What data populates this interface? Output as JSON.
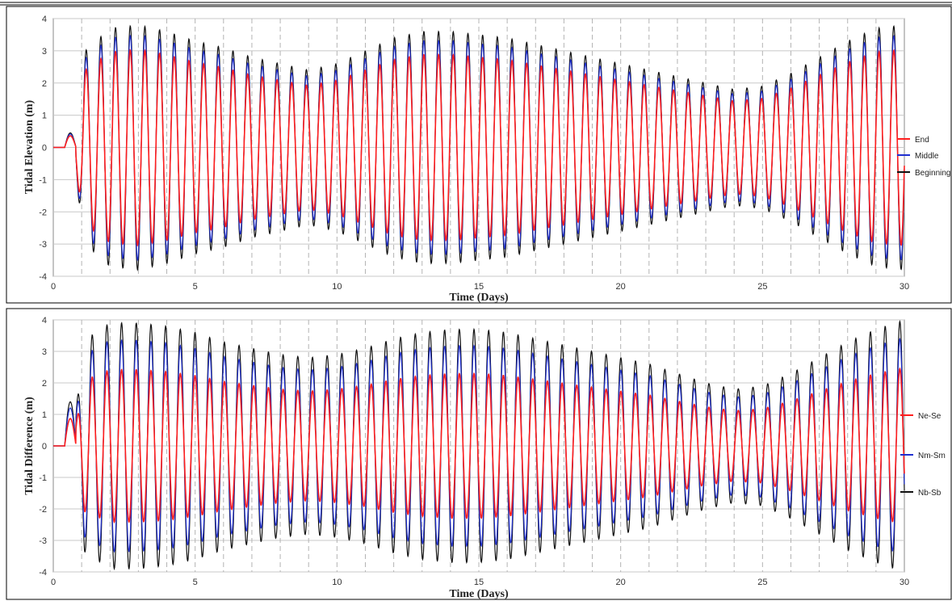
{
  "chart_data": [
    {
      "type": "line",
      "title": "",
      "xlabel": "Time (Days)",
      "ylabel": "Tidal Elevation (m)",
      "xlim": [
        0,
        30
      ],
      "ylim": [
        -4,
        4
      ],
      "x_ticks": [
        "0",
        "5",
        "10",
        "15",
        "20",
        "25",
        "30"
      ],
      "y_ticks": [
        "4",
        "3",
        "2",
        "1",
        "0",
        "-1",
        "-2",
        "-3",
        "-4"
      ],
      "grid": true,
      "day_markers": "dashed vertical line at each whole day",
      "legend_position": "right",
      "wave": {
        "start_day": 0.8,
        "cycles_per_day": 1.932,
        "initial_dip_min": -1.9
      },
      "envelope": {
        "days": [
          1,
          2,
          3,
          4,
          5,
          6,
          7,
          8,
          9,
          10,
          11,
          12,
          13,
          14,
          15,
          16,
          17,
          18,
          19,
          20,
          21,
          22,
          23,
          24,
          25,
          26,
          27,
          28,
          29,
          30
        ],
        "amplitude": [
          2.9,
          3.7,
          3.8,
          3.6,
          3.3,
          3.1,
          2.8,
          2.6,
          2.4,
          2.6,
          3.0,
          3.4,
          3.6,
          3.6,
          3.5,
          3.4,
          3.2,
          3.0,
          2.8,
          2.6,
          2.4,
          2.2,
          2.0,
          1.8,
          1.9,
          2.3,
          2.8,
          3.3,
          3.7,
          3.8
        ]
      },
      "series": [
        {
          "name": "End",
          "color": "#ff1e1e",
          "scale": 0.8
        },
        {
          "name": "Middle",
          "color": "#1f2fd0",
          "scale": 0.92
        },
        {
          "name": "Beginning",
          "color": "#111111",
          "scale": 1.0
        }
      ]
    },
    {
      "type": "line",
      "title": "",
      "xlabel": "Time (Days)",
      "ylabel": "Tidal Difference (m)",
      "xlim": [
        0,
        30
      ],
      "ylim": [
        -4,
        4
      ],
      "x_ticks": [
        "0",
        "5",
        "10",
        "15",
        "20",
        "25",
        "30"
      ],
      "y_ticks": [
        "4",
        "3",
        "2",
        "1",
        "0",
        "-1",
        "-2",
        "-3",
        "-4"
      ],
      "grid": true,
      "day_markers": "dashed vertical line at each whole day",
      "legend_position": "right",
      "wave": {
        "start_day": 0.8,
        "cycles_per_day": 1.932,
        "initial_peak_max": 1.4
      },
      "envelope": {
        "days": [
          1,
          2,
          3,
          4,
          5,
          6,
          7,
          8,
          9,
          10,
          11,
          12,
          13,
          14,
          15,
          16,
          17,
          18,
          19,
          20,
          21,
          22,
          23,
          24,
          25,
          26,
          27,
          28,
          29,
          30
        ],
        "amplitude": [
          3.3,
          3.9,
          3.9,
          3.8,
          3.6,
          3.3,
          3.1,
          2.9,
          2.8,
          2.9,
          3.1,
          3.4,
          3.6,
          3.7,
          3.7,
          3.6,
          3.4,
          3.2,
          3.0,
          2.8,
          2.6,
          2.3,
          2.0,
          1.8,
          1.9,
          2.3,
          2.8,
          3.3,
          3.7,
          4.0
        ]
      },
      "series": [
        {
          "name": "Ne-Se",
          "color": "#ff1e1e",
          "scale": 0.62
        },
        {
          "name": "Nm-Sm",
          "color": "#1f2fd0",
          "scale": 0.86
        },
        {
          "name": "Nb-Sb",
          "color": "#111111",
          "scale": 1.0
        }
      ]
    }
  ]
}
